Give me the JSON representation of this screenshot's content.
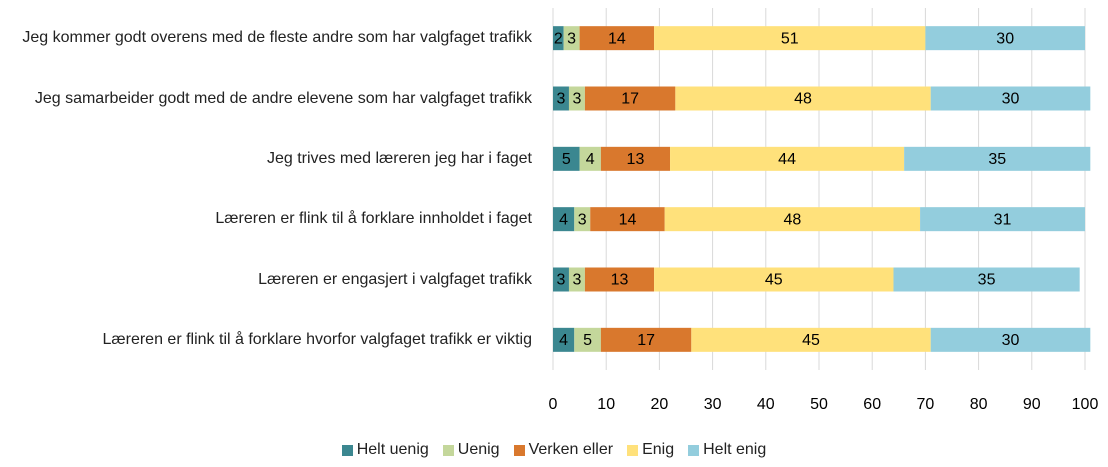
{
  "chart_data": {
    "type": "stacked_barh",
    "categories": [
      "Jeg kommer godt overens med de fleste andre som har valgfaget trafikk",
      "Jeg samarbeider godt med de andre elevene som har valgfaget trafikk",
      "Jeg trives med læreren jeg har i faget",
      "Læreren er flink til å forklare innholdet i faget",
      "Læreren er engasjert i valgfaget trafikk",
      "Læreren er flink til å forklare hvorfor valgfaget trafikk er viktig"
    ],
    "series": [
      {
        "name": "Helt uenig",
        "color": "#3b8790",
        "values": [
          2,
          3,
          5,
          4,
          3,
          4
        ]
      },
      {
        "name": "Uenig",
        "color": "#c4d79b",
        "values": [
          3,
          3,
          4,
          3,
          3,
          5
        ]
      },
      {
        "name": "Verken eller",
        "color": "#d9782d",
        "values": [
          14,
          17,
          13,
          14,
          13,
          17
        ]
      },
      {
        "name": "Enig",
        "color": "#ffe17b",
        "values": [
          51,
          48,
          44,
          48,
          45,
          45
        ]
      },
      {
        "name": "Helt enig",
        "color": "#93cddd",
        "values": [
          30,
          30,
          35,
          31,
          35,
          30
        ]
      }
    ],
    "xlim": [
      0,
      100
    ],
    "xticks": [
      0,
      10,
      20,
      30,
      40,
      50,
      60,
      70,
      80,
      90,
      100
    ],
    "grid": true
  }
}
